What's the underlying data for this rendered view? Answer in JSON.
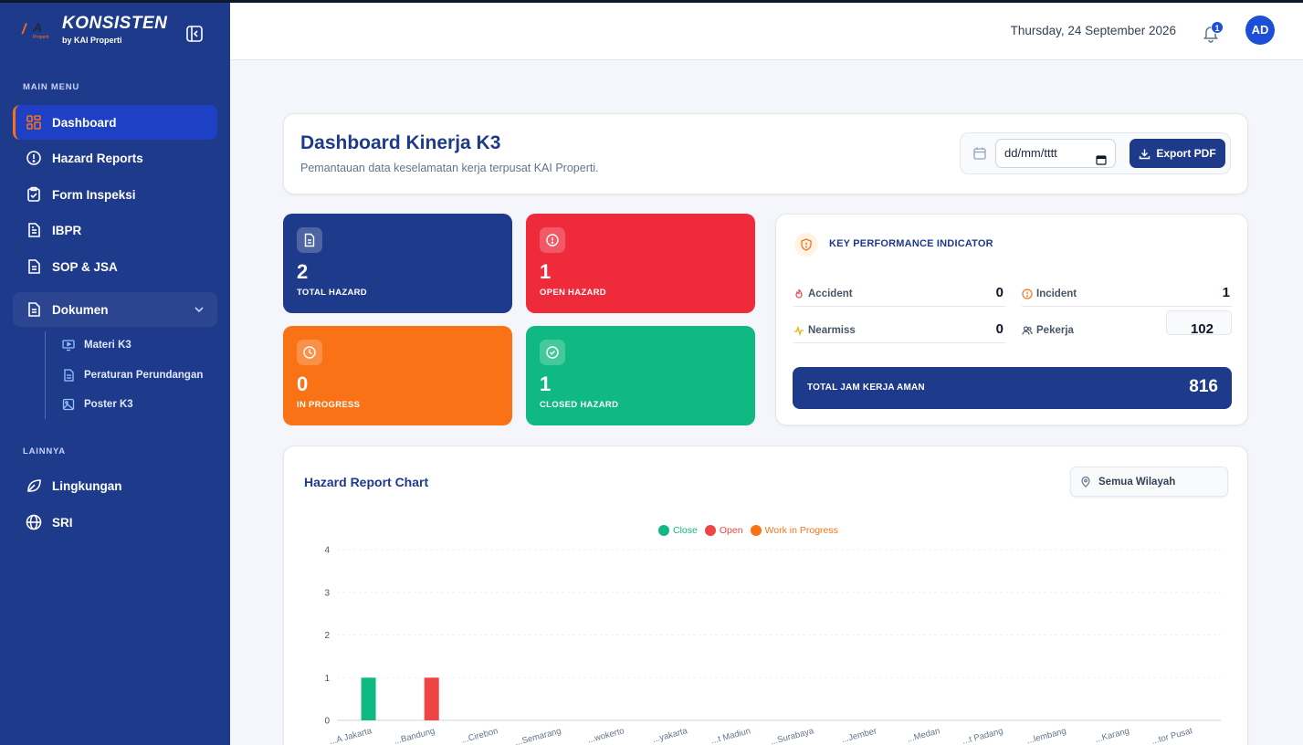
{
  "brand": {
    "title": "KONSISTEN",
    "subtitle": "by KAI Properti",
    "logo_text": "A",
    "logo_sub": "Properti"
  },
  "sidebar": {
    "main_label": "MAIN MENU",
    "other_label": "LAINNYA",
    "items": [
      {
        "label": "Dashboard",
        "icon": "grid-icon"
      },
      {
        "label": "Hazard Reports",
        "icon": "alert-circle-icon"
      },
      {
        "label": "Form Inspeksi",
        "icon": "clipboard-icon"
      },
      {
        "label": "IBPR",
        "icon": "file-table-icon"
      },
      {
        "label": "SOP & JSA",
        "icon": "file-text-icon"
      },
      {
        "label": "Dokumen",
        "icon": "file-icon"
      }
    ],
    "sub_items": [
      {
        "label": "Materi K3",
        "icon": "monitor-icon"
      },
      {
        "label": "Peraturan Perundangan",
        "icon": "file-text-icon"
      },
      {
        "label": "Poster K3",
        "icon": "image-icon"
      }
    ],
    "other_items": [
      {
        "label": "Lingkungan",
        "icon": "leaf-icon"
      },
      {
        "label": "SRI",
        "icon": "globe-icon"
      }
    ]
  },
  "header": {
    "date": "Thursday, 24 September 2026",
    "notif_count": "1",
    "avatar": "AD"
  },
  "page": {
    "title": "Dashboard Kinerja K3",
    "subtitle": "Pemantauan data keselamatan kerja terpusat KAI Properti.",
    "date_placeholder": "dd/mm/tttt",
    "export_label": "Export PDF"
  },
  "stats": [
    {
      "value": "2",
      "label": "TOTAL HAZARD",
      "color": "#1e3a8a"
    },
    {
      "value": "1",
      "label": "OPEN HAZARD",
      "color": "#ef2b3b"
    },
    {
      "value": "0",
      "label": "IN PROGRESS",
      "color": "#f97316"
    },
    {
      "value": "1",
      "label": "CLOSED HAZARD",
      "color": "#10b981"
    }
  ],
  "kpi": {
    "title": "KEY PERFORMANCE INDICATOR",
    "accident_label": "Accident",
    "accident_value": "0",
    "incident_label": "Incident",
    "incident_value": "1",
    "nearmiss_label": "Nearmiss",
    "nearmiss_value": "0",
    "pekerja_label": "Pekerja",
    "pekerja_value": "102",
    "total_label": "TOTAL JAM KERJA AMAN",
    "total_value": "816"
  },
  "chart": {
    "title": "Hazard Report Chart",
    "region": "Semua Wilayah"
  },
  "chart_data": {
    "type": "bar",
    "categories": [
      "...A Jakarta",
      "...Bandung",
      "...Cirebon",
      "...Semarang",
      "...wokerto",
      "...yakarta",
      "...t Madiun",
      "...Surabaya",
      "...Jember",
      "...Medan",
      "...t Padang",
      "...lembang",
      "...Karang",
      "...tor Pusat"
    ],
    "series": [
      {
        "name": "Close",
        "color": "#10b981",
        "values": [
          1,
          0,
          0,
          0,
          0,
          0,
          0,
          0,
          0,
          0,
          0,
          0,
          0,
          0
        ]
      },
      {
        "name": "Open",
        "color": "#ef4444",
        "values": [
          0,
          1,
          0,
          0,
          0,
          0,
          0,
          0,
          0,
          0,
          0,
          0,
          0,
          0
        ]
      },
      {
        "name": "Work in Progress",
        "color": "#f97316",
        "values": [
          0,
          0,
          0,
          0,
          0,
          0,
          0,
          0,
          0,
          0,
          0,
          0,
          0,
          0
        ]
      }
    ],
    "yticks": [
      "0",
      "1",
      "2",
      "3",
      "4"
    ],
    "ylim": [
      0,
      4
    ],
    "grid": true,
    "legend": "top-center"
  }
}
